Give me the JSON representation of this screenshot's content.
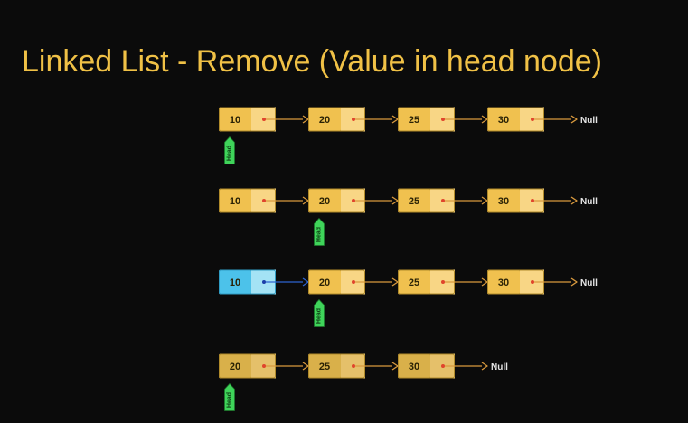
{
  "title": "Linked List - Remove (Value in head node)",
  "null_label": "Null",
  "head_label": "Head",
  "colors": {
    "background": "#0b0b0b",
    "title": "#f0c146",
    "node_value": "#f0c14f",
    "node_pointer": "#f8d685",
    "node_border": "#b08a2a",
    "node_value_dim": "#d9b04a",
    "node_pointer_dim": "#e5c06a",
    "removed_value": "#4cc2ea",
    "removed_pointer": "#a4e3f5",
    "arrow": "#d99a3e",
    "removed_arrow": "#2d63d0",
    "dot": "#e0442c",
    "removed_dot": "#1b3fa8",
    "head_tag": "#3fd45a"
  },
  "rows": [
    {
      "step": 1,
      "nodes": [
        "10",
        "20",
        "25",
        "30"
      ],
      "head_index": 0,
      "removed_index": null
    },
    {
      "step": 2,
      "nodes": [
        "10",
        "20",
        "25",
        "30"
      ],
      "head_index": 1,
      "removed_index": null
    },
    {
      "step": 3,
      "nodes": [
        "10",
        "20",
        "25",
        "30"
      ],
      "head_index": 1,
      "removed_index": 0
    },
    {
      "step": 4,
      "nodes": [
        "20",
        "25",
        "30"
      ],
      "head_index": 0,
      "removed_index": null
    }
  ]
}
